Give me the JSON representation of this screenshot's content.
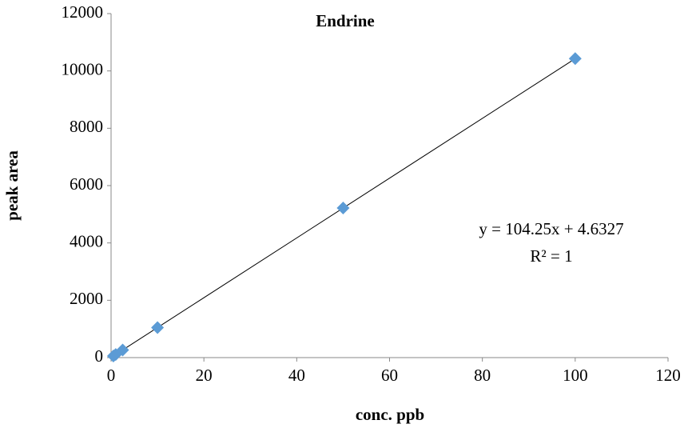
{
  "chart_data": {
    "type": "scatter",
    "title": "Endrine",
    "x_label": "conc. ppb",
    "y_label": "peak area",
    "series": [
      {
        "name": "peak area",
        "color": "#5b9bd5",
        "x": [
          0.5,
          1,
          2.5,
          10,
          50,
          100
        ],
        "values": [
          57,
          109,
          265,
          1047,
          5217,
          10430
        ]
      }
    ],
    "trendline": {
      "color": "#000000",
      "x": [
        0,
        100
      ],
      "values": [
        4.6327,
        10429.6
      ]
    },
    "annotations": [
      "y = 104.25x + 4.6327",
      "R² = 1"
    ],
    "xlim": [
      0,
      120
    ],
    "xticks": [
      0,
      20,
      40,
      60,
      80,
      100,
      120
    ],
    "ylim": [
      0,
      12000
    ],
    "yticks": [
      0,
      2000,
      4000,
      6000,
      8000,
      10000,
      12000
    ],
    "grid": false
  }
}
